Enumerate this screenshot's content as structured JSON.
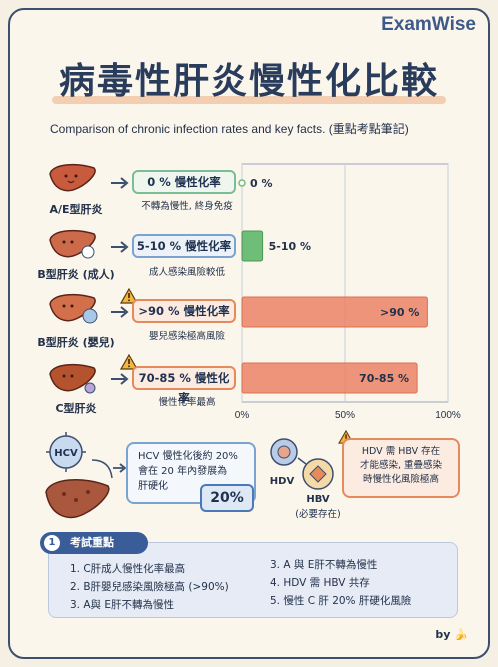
{
  "brand": "ExamWise",
  "title": "病毒性肝炎慢性化比較",
  "subtitle": "Comparison of chronic infection rates and key facts. (重點考點筆記)",
  "rows": [
    {
      "label": "A/E型肝炎",
      "rate_text": "0 % 慢性化率",
      "note": "不轉為慢性, 終身免疫",
      "value_label": "0 %"
    },
    {
      "label": "B型肝炎 (成人)",
      "rate_text": "5-10 % 慢性化率",
      "note": "成人感染風險較低",
      "value_label": "5-10 %"
    },
    {
      "label": "B型肝炎 (嬰兒)",
      "rate_text": ">90 % 慢性化率",
      "note": "嬰兒感染極高風險",
      "value_label": ">90 %"
    },
    {
      "label": "C型肝炎",
      "rate_text": "70-85 % 慢性化率",
      "note": "慢性化率最高",
      "value_label": "70-85 %"
    }
  ],
  "chart_data": {
    "type": "bar",
    "orientation": "horizontal",
    "categories": [
      "A/E型肝炎",
      "B型肝炎 (成人)",
      "B型肝炎 (嬰兒)",
      "C型肝炎"
    ],
    "values": [
      0,
      10,
      90,
      85
    ],
    "value_labels": [
      "0 %",
      "5-10 %",
      ">90 %",
      "70-85 %"
    ],
    "xlim": [
      0,
      100
    ],
    "ticks": [
      "0%",
      "50%",
      "100%"
    ],
    "colors": [
      "#6fbf7a",
      "#5fb86b",
      "#ec8a6e",
      "#ec8a6e"
    ]
  },
  "hcv": {
    "virus_label": "HCV",
    "line1": "HCV 慢性化後約 20%",
    "line2": "會在 20 年內發展為",
    "line3": "肝硬化",
    "pct": "20%"
  },
  "hdv": {
    "hdv_label": "HDV",
    "hbv_label": "HBV",
    "hbv_note": "(必要存在)",
    "line1": "HDV 需 HBV 存在",
    "line2": "才能感染, 重疊感染",
    "line3": "時慢性化風險極高"
  },
  "tips": {
    "number": "1",
    "heading": "考試重點",
    "left": [
      "1. C肝成人慢性化率最高",
      "2. B肝嬰兒感染風險極高 (>90%)",
      "3. A與 E肝不轉為慢性"
    ],
    "right": [
      "3. A 與 E肝不轉為慢性",
      "4. HDV 需 HBV 共存",
      "5. 慢性 C 肝 20% 肝硬化風險"
    ]
  },
  "byline": "by 🍌",
  "colors": {
    "green": "#6fbf7a",
    "orange": "#ec8a6e",
    "navy": "#2a3c5c",
    "blue": "#3a5d9a"
  }
}
